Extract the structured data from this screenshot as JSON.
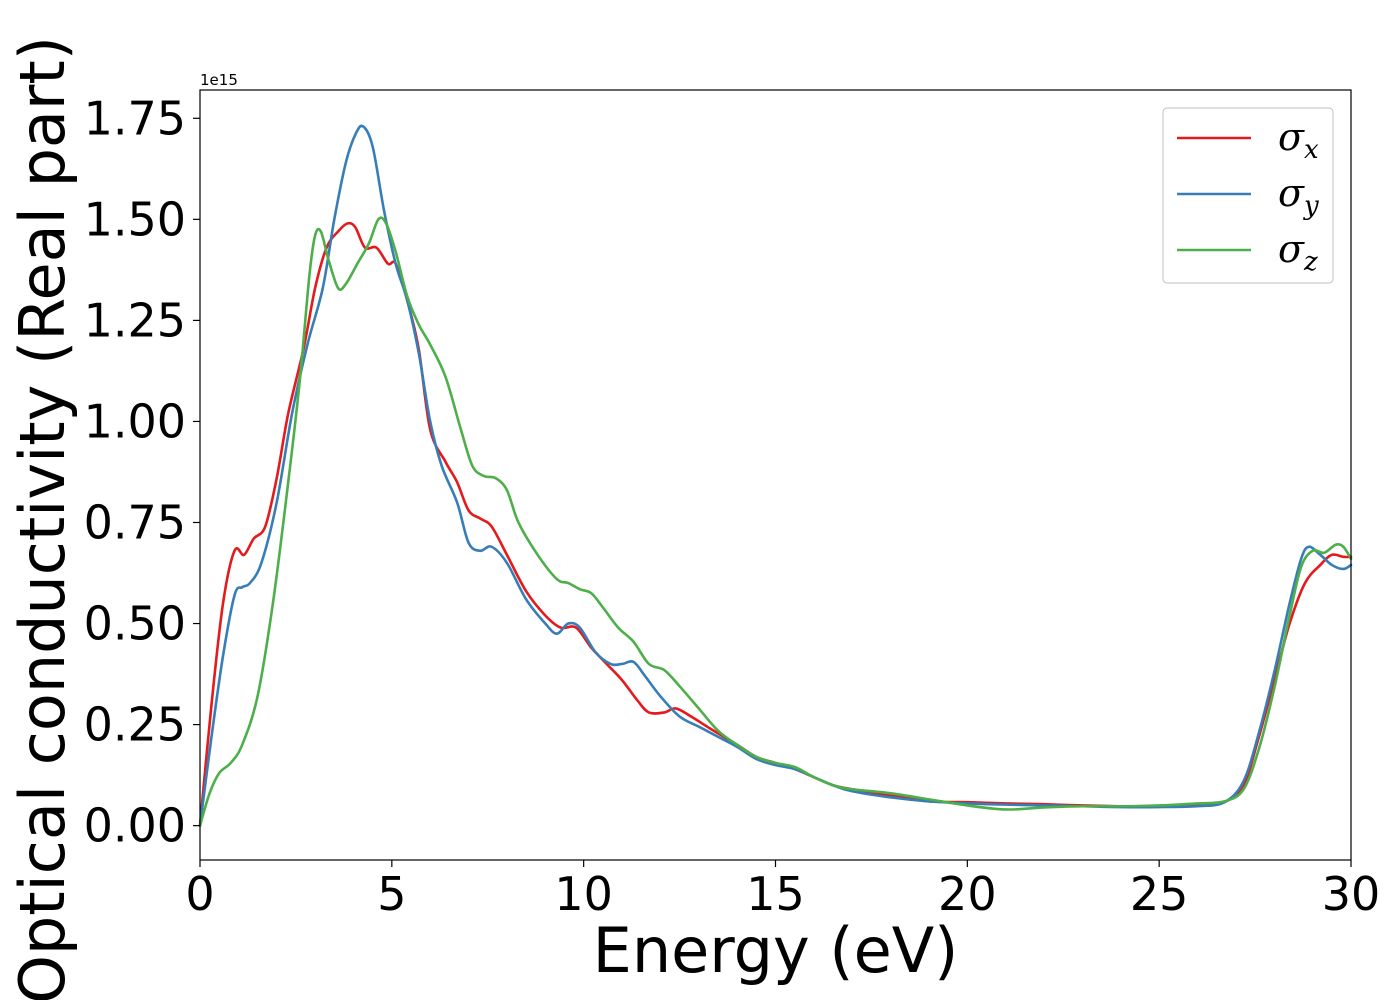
{
  "chart_data": {
    "type": "line",
    "xlabel": "Energy (eV)",
    "ylabel": "Optical conductivity (Real part)",
    "y_offset_label": "1e15",
    "y_multiplier": 1000000000000000.0,
    "xlim": [
      0,
      30
    ],
    "ylim": [
      -0.085,
      1.82
    ],
    "xticks": [
      0,
      5,
      10,
      15,
      20,
      25,
      30
    ],
    "xtick_labels": [
      "0",
      "5",
      "10",
      "15",
      "20",
      "25",
      "30"
    ],
    "yticks": [
      0.0,
      0.25,
      0.5,
      0.75,
      1.0,
      1.25,
      1.5,
      1.75
    ],
    "ytick_labels": [
      "0.00",
      "0.25",
      "0.50",
      "0.75",
      "1.00",
      "1.25",
      "1.50",
      "1.75"
    ],
    "grid": false,
    "legend_position": "top-right",
    "series": [
      {
        "name": "σx",
        "legend_symbol": "σ",
        "legend_subscript": "x",
        "color": "#e41a1c",
        "points": [
          [
            0,
            0
          ],
          [
            0.3,
            0.3
          ],
          [
            0.6,
            0.55
          ],
          [
            0.9,
            0.68
          ],
          [
            1.15,
            0.67
          ],
          [
            1.4,
            0.71
          ],
          [
            1.7,
            0.74
          ],
          [
            2.0,
            0.86
          ],
          [
            2.3,
            1.02
          ],
          [
            2.7,
            1.18
          ],
          [
            3.0,
            1.33
          ],
          [
            3.3,
            1.43
          ],
          [
            3.6,
            1.47
          ],
          [
            3.85,
            1.49
          ],
          [
            4.05,
            1.48
          ],
          [
            4.3,
            1.43
          ],
          [
            4.6,
            1.43
          ],
          [
            4.9,
            1.39
          ],
          [
            5.1,
            1.39
          ],
          [
            5.4,
            1.3
          ],
          [
            5.7,
            1.18
          ],
          [
            6.0,
            0.98
          ],
          [
            6.4,
            0.9
          ],
          [
            6.7,
            0.85
          ],
          [
            7.0,
            0.78
          ],
          [
            7.3,
            0.76
          ],
          [
            7.6,
            0.74
          ],
          [
            8.0,
            0.67
          ],
          [
            8.5,
            0.58
          ],
          [
            9.0,
            0.52
          ],
          [
            9.4,
            0.49
          ],
          [
            9.8,
            0.49
          ],
          [
            10.2,
            0.44
          ],
          [
            10.6,
            0.4
          ],
          [
            11.0,
            0.36
          ],
          [
            11.4,
            0.31
          ],
          [
            11.7,
            0.28
          ],
          [
            12.1,
            0.28
          ],
          [
            12.4,
            0.29
          ],
          [
            12.8,
            0.27
          ],
          [
            13.3,
            0.24
          ],
          [
            14.0,
            0.2
          ],
          [
            14.5,
            0.17
          ],
          [
            15.0,
            0.155
          ],
          [
            15.5,
            0.14
          ],
          [
            16.0,
            0.12
          ],
          [
            16.5,
            0.1
          ],
          [
            17.0,
            0.09
          ],
          [
            18.0,
            0.075
          ],
          [
            19.0,
            0.06
          ],
          [
            20.0,
            0.058
          ],
          [
            21.0,
            0.055
          ],
          [
            22.0,
            0.053
          ],
          [
            23.0,
            0.05
          ],
          [
            24.0,
            0.048
          ],
          [
            25.0,
            0.048
          ],
          [
            26.0,
            0.05
          ],
          [
            26.7,
            0.058
          ],
          [
            27.2,
            0.1
          ],
          [
            27.6,
            0.22
          ],
          [
            28.0,
            0.36
          ],
          [
            28.4,
            0.5
          ],
          [
            28.8,
            0.6
          ],
          [
            29.2,
            0.645
          ],
          [
            29.5,
            0.67
          ],
          [
            29.8,
            0.665
          ],
          [
            30.0,
            0.665
          ]
        ]
      },
      {
        "name": "σy",
        "legend_symbol": "σ",
        "legend_subscript": "y",
        "color": "#377eb8",
        "points": [
          [
            0,
            0
          ],
          [
            0.3,
            0.22
          ],
          [
            0.6,
            0.42
          ],
          [
            0.9,
            0.57
          ],
          [
            1.1,
            0.59
          ],
          [
            1.3,
            0.6
          ],
          [
            1.6,
            0.65
          ],
          [
            2.0,
            0.8
          ],
          [
            2.4,
            1.02
          ],
          [
            2.8,
            1.19
          ],
          [
            3.2,
            1.33
          ],
          [
            3.5,
            1.5
          ],
          [
            3.8,
            1.64
          ],
          [
            4.05,
            1.71
          ],
          [
            4.25,
            1.73
          ],
          [
            4.5,
            1.68
          ],
          [
            4.8,
            1.52
          ],
          [
            5.1,
            1.39
          ],
          [
            5.4,
            1.3
          ],
          [
            5.7,
            1.17
          ],
          [
            6.0,
            1.0
          ],
          [
            6.3,
            0.89
          ],
          [
            6.7,
            0.8
          ],
          [
            7.0,
            0.7
          ],
          [
            7.3,
            0.68
          ],
          [
            7.6,
            0.69
          ],
          [
            8.0,
            0.65
          ],
          [
            8.5,
            0.56
          ],
          [
            9.0,
            0.5
          ],
          [
            9.3,
            0.475
          ],
          [
            9.6,
            0.5
          ],
          [
            9.9,
            0.49
          ],
          [
            10.3,
            0.43
          ],
          [
            10.7,
            0.4
          ],
          [
            11.0,
            0.4
          ],
          [
            11.3,
            0.405
          ],
          [
            11.6,
            0.37
          ],
          [
            12.0,
            0.32
          ],
          [
            12.5,
            0.27
          ],
          [
            13.0,
            0.245
          ],
          [
            13.5,
            0.22
          ],
          [
            14.0,
            0.195
          ],
          [
            14.5,
            0.165
          ],
          [
            15.0,
            0.15
          ],
          [
            15.5,
            0.14
          ],
          [
            16.0,
            0.12
          ],
          [
            16.5,
            0.1
          ],
          [
            17.0,
            0.085
          ],
          [
            18.0,
            0.07
          ],
          [
            19.0,
            0.06
          ],
          [
            20.0,
            0.055
          ],
          [
            21.0,
            0.052
          ],
          [
            22.0,
            0.05
          ],
          [
            23.0,
            0.048
          ],
          [
            24.0,
            0.046
          ],
          [
            25.0,
            0.046
          ],
          [
            26.0,
            0.048
          ],
          [
            26.7,
            0.058
          ],
          [
            27.2,
            0.11
          ],
          [
            27.6,
            0.23
          ],
          [
            28.0,
            0.38
          ],
          [
            28.4,
            0.55
          ],
          [
            28.7,
            0.66
          ],
          [
            28.9,
            0.69
          ],
          [
            29.2,
            0.67
          ],
          [
            29.5,
            0.645
          ],
          [
            29.8,
            0.635
          ],
          [
            30.0,
            0.645
          ]
        ]
      },
      {
        "name": "σz",
        "legend_symbol": "σ",
        "legend_subscript": "z",
        "color": "#4daf4a",
        "points": [
          [
            0,
            0
          ],
          [
            0.25,
            0.08
          ],
          [
            0.5,
            0.13
          ],
          [
            0.8,
            0.155
          ],
          [
            1.1,
            0.2
          ],
          [
            1.5,
            0.32
          ],
          [
            1.9,
            0.55
          ],
          [
            2.3,
            0.85
          ],
          [
            2.6,
            1.1
          ],
          [
            2.85,
            1.36
          ],
          [
            3.0,
            1.46
          ],
          [
            3.15,
            1.47
          ],
          [
            3.35,
            1.4
          ],
          [
            3.6,
            1.33
          ],
          [
            3.8,
            1.34
          ],
          [
            4.1,
            1.39
          ],
          [
            4.4,
            1.44
          ],
          [
            4.65,
            1.5
          ],
          [
            4.85,
            1.49
          ],
          [
            5.1,
            1.42
          ],
          [
            5.4,
            1.31
          ],
          [
            5.7,
            1.24
          ],
          [
            6.0,
            1.19
          ],
          [
            6.4,
            1.11
          ],
          [
            6.8,
            0.98
          ],
          [
            7.1,
            0.89
          ],
          [
            7.4,
            0.865
          ],
          [
            7.7,
            0.86
          ],
          [
            8.0,
            0.83
          ],
          [
            8.3,
            0.75
          ],
          [
            8.8,
            0.67
          ],
          [
            9.3,
            0.61
          ],
          [
            9.6,
            0.6
          ],
          [
            9.9,
            0.585
          ],
          [
            10.2,
            0.575
          ],
          [
            10.5,
            0.54
          ],
          [
            10.9,
            0.49
          ],
          [
            11.3,
            0.455
          ],
          [
            11.7,
            0.4
          ],
          [
            12.1,
            0.385
          ],
          [
            12.5,
            0.345
          ],
          [
            13.0,
            0.29
          ],
          [
            13.5,
            0.235
          ],
          [
            14.0,
            0.2
          ],
          [
            14.5,
            0.17
          ],
          [
            15.0,
            0.155
          ],
          [
            15.5,
            0.145
          ],
          [
            16.0,
            0.12
          ],
          [
            16.5,
            0.1
          ],
          [
            17.0,
            0.09
          ],
          [
            18.0,
            0.08
          ],
          [
            19.0,
            0.065
          ],
          [
            20.0,
            0.05
          ],
          [
            21.0,
            0.04
          ],
          [
            22.0,
            0.045
          ],
          [
            23.0,
            0.048
          ],
          [
            24.0,
            0.048
          ],
          [
            25.0,
            0.05
          ],
          [
            26.0,
            0.055
          ],
          [
            26.7,
            0.06
          ],
          [
            27.2,
            0.09
          ],
          [
            27.6,
            0.19
          ],
          [
            28.0,
            0.34
          ],
          [
            28.4,
            0.52
          ],
          [
            28.7,
            0.64
          ],
          [
            29.0,
            0.68
          ],
          [
            29.3,
            0.675
          ],
          [
            29.6,
            0.695
          ],
          [
            29.8,
            0.69
          ],
          [
            30.0,
            0.66
          ]
        ]
      }
    ]
  }
}
